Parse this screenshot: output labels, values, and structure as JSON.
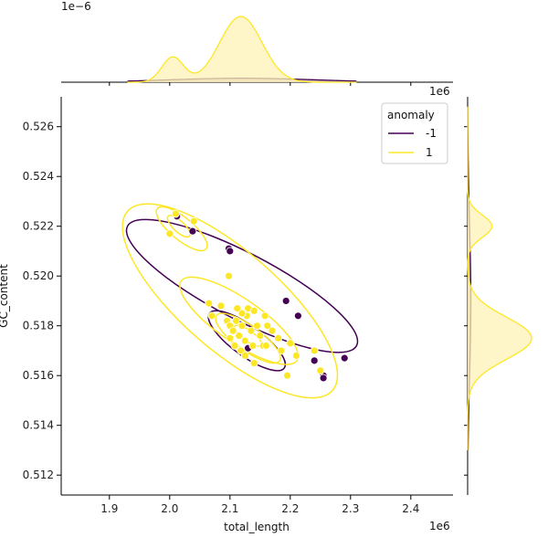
{
  "chart_data": {
    "type": "scatter",
    "xlabel": "total_length",
    "ylabel": "GC_content",
    "x_offset_text": "1e6",
    "y_offset_text": "1e6",
    "top_marginal_offset_text": "1e−6",
    "xlim": [
      1.82,
      2.47
    ],
    "ylim": [
      0.5112,
      0.5272
    ],
    "x_ticks": [
      1.9,
      2.0,
      2.1,
      2.2,
      2.3,
      2.4
    ],
    "x_tick_labels": [
      "1.9",
      "2.0",
      "2.1",
      "2.2",
      "2.3",
      "2.4"
    ],
    "y_ticks": [
      0.512,
      0.514,
      0.516,
      0.518,
      0.52,
      0.522,
      0.524,
      0.526
    ],
    "y_tick_labels": [
      "0.512",
      "0.514",
      "0.516",
      "0.518",
      "0.520",
      "0.522",
      "0.524",
      "0.526"
    ],
    "legend": {
      "title": "anomaly",
      "placement": "top-right",
      "entries": [
        "-1",
        "1"
      ]
    },
    "colors": {
      "anomaly_neg": "#440154",
      "anomaly_pos": "#fde725",
      "neg_fill": "#c8b0b0",
      "pos_fill": "#fdf3b6"
    },
    "grid": false,
    "series": [
      {
        "name": "-1",
        "color": "#440154",
        "points": [
          [
            2.012,
            0.5224
          ],
          [
            2.038,
            0.5218
          ],
          [
            2.098,
            0.5211
          ],
          [
            2.1,
            0.521
          ],
          [
            2.193,
            0.519
          ],
          [
            2.213,
            0.5184
          ],
          [
            2.24,
            0.5166
          ],
          [
            2.255,
            0.516
          ],
          [
            2.29,
            0.5167
          ],
          [
            2.255,
            0.5159
          ],
          [
            2.13,
            0.5171
          ]
        ]
      },
      {
        "name": "1",
        "color": "#fde725",
        "points": [
          [
            2.01,
            0.5225
          ],
          [
            2.04,
            0.5222
          ],
          [
            2.0,
            0.5217
          ],
          [
            2.098,
            0.52
          ],
          [
            2.065,
            0.5189
          ],
          [
            2.07,
            0.5184
          ],
          [
            2.085,
            0.5188
          ],
          [
            2.095,
            0.5182
          ],
          [
            2.1,
            0.518
          ],
          [
            2.105,
            0.5178
          ],
          [
            2.11,
            0.5182
          ],
          [
            2.115,
            0.5176
          ],
          [
            2.12,
            0.518
          ],
          [
            2.125,
            0.5174
          ],
          [
            2.128,
            0.5184
          ],
          [
            2.13,
            0.5187
          ],
          [
            2.135,
            0.5178
          ],
          [
            2.138,
            0.5172
          ],
          [
            2.14,
            0.5186
          ],
          [
            2.145,
            0.518
          ],
          [
            2.15,
            0.5176
          ],
          [
            2.155,
            0.5172
          ],
          [
            2.158,
            0.5184
          ],
          [
            2.162,
            0.518
          ],
          [
            2.17,
            0.5178
          ],
          [
            2.18,
            0.5175
          ],
          [
            2.1,
            0.5175
          ],
          [
            2.108,
            0.5172
          ],
          [
            2.118,
            0.517
          ],
          [
            2.125,
            0.5168
          ],
          [
            2.14,
            0.5165
          ],
          [
            2.16,
            0.5172
          ],
          [
            2.185,
            0.517
          ],
          [
            2.2,
            0.5173
          ],
          [
            2.21,
            0.5168
          ],
          [
            2.24,
            0.517
          ],
          [
            2.25,
            0.5162
          ],
          [
            2.195,
            0.516
          ],
          [
            2.12,
            0.5185
          ],
          [
            2.112,
            0.5187
          ]
        ]
      }
    ],
    "kde_contours": {
      "-1": [
        {
          "center": [
            2.12,
            0.5196
          ],
          "sx": 0.19,
          "sy": 0.0024,
          "angle": -0.9,
          "r": 1.0
        },
        {
          "center": [
            2.128,
            0.5174
          ],
          "sx": 0.062,
          "sy": 0.0011,
          "angle": -0.9,
          "r": 1.0
        }
      ],
      "1": [
        {
          "center": [
            2.1,
            0.519
          ],
          "sx": 0.17,
          "sy": 0.0036,
          "angle": -0.85,
          "r": 1.0
        },
        {
          "center": [
            2.115,
            0.5182
          ],
          "sx": 0.12,
          "sy": 0.002,
          "angle": -0.85,
          "r": 0.8
        },
        {
          "center": [
            2.13,
            0.5175
          ],
          "sx": 0.075,
          "sy": 0.0013,
          "angle": -0.85,
          "r": 0.7
        },
        {
          "center": [
            2.13,
            0.5176
          ],
          "sx": 0.04,
          "sy": 0.0007,
          "angle": -0.85,
          "r": 0.55
        },
        {
          "center": [
            2.02,
            0.5219
          ],
          "sx": 0.045,
          "sy": 0.0009,
          "angle": -0.8,
          "r": 0.9
        },
        {
          "center": [
            2.015,
            0.522
          ],
          "sx": 0.022,
          "sy": 0.0005,
          "angle": -0.8,
          "r": 0.8
        }
      ]
    },
    "marginal_x": {
      "-1": {
        "components": [
          [
            2.12,
            0.12,
            1.0
          ]
        ],
        "scale": 0.06
      },
      "1": {
        "components": [
          [
            2.005,
            0.018,
            0.38
          ],
          [
            2.118,
            0.035,
            1.0
          ]
        ],
        "scale": 1.0
      }
    },
    "marginal_y": {
      "-1": {
        "components": [
          [
            0.519,
            0.003,
            1.0
          ]
        ],
        "scale": 0.05
      },
      "1": {
        "components": [
          [
            0.522,
            0.00045,
            0.38
          ],
          [
            0.5175,
            0.00085,
            1.0
          ]
        ],
        "scale": 1.0
      }
    }
  }
}
